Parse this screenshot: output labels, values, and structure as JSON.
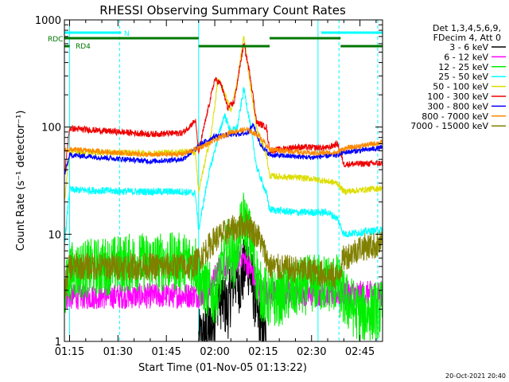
{
  "chart_data": {
    "type": "line",
    "title": "RHESSI Observing Summary Count Rates",
    "xlabel": "Start Time (01-Nov-05 01:13:22)",
    "ylabel": "Count Rate (s⁻¹ detector⁻¹)",
    "yscale": "log",
    "xlim_minutes": [
      73.4,
      172
    ],
    "ylim": [
      1,
      1000
    ],
    "x_ticks": [
      {
        "min": 75,
        "label": "01:15"
      },
      {
        "min": 90,
        "label": "01:30"
      },
      {
        "min": 105,
        "label": "01:45"
      },
      {
        "min": 120,
        "label": "02:00"
      },
      {
        "min": 135,
        "label": "02:15"
      },
      {
        "min": 150,
        "label": "02:30"
      },
      {
        "min": 165,
        "label": "02:45"
      }
    ],
    "y_ticks": [
      {
        "value": 1,
        "label": "1"
      },
      {
        "value": 10,
        "label": "10"
      },
      {
        "value": 100,
        "label": "100"
      },
      {
        "value": 1000,
        "label": "1000"
      }
    ],
    "grid": false,
    "legend": {
      "placement": "right",
      "header": [
        "Det 1,3,4,5,6,9,",
        "FDecim 4, Att 0"
      ],
      "entries": [
        {
          "label": "3 - 6 keV",
          "color": "#000000"
        },
        {
          "label": "6 - 12 keV",
          "color": "#ff00ff"
        },
        {
          "label": "12 - 25 keV",
          "color": "#00ee00"
        },
        {
          "label": "25 - 50 keV",
          "color": "#00ffff"
        },
        {
          "label": "50 - 100 keV",
          "color": "#dddd00"
        },
        {
          "label": "100 - 300 keV",
          "color": "#ee0000"
        },
        {
          "label": "300 - 800 keV",
          "color": "#0000ff"
        },
        {
          "label": "800 - 7000 keV",
          "color": "#ff8800"
        },
        {
          "label": "7000 - 15000 keV",
          "color": "#808000"
        }
      ]
    },
    "flags": [
      {
        "label": "N",
        "color": "#00ffff",
        "segments": [
          [
            73.4,
            91
          ],
          [
            153,
            172
          ]
        ]
      },
      {
        "label": "RDC",
        "color": "#007700",
        "segments": [
          [
            73.4,
            115
          ],
          [
            137,
            159
          ]
        ]
      },
      {
        "label": "RD4",
        "color": "#007700",
        "segments": [
          [
            73.4,
            75
          ],
          [
            115,
            137
          ],
          [
            159,
            172
          ]
        ]
      }
    ],
    "vlines_solid": [
      75,
      115,
      152
    ],
    "vlines_dashed": [
      90.5,
      158.5,
      170.5
    ],
    "series": [
      {
        "name": "3 - 6 keV",
        "color": "#000000",
        "noise": 0.3,
        "points": [
          [
            115,
            1
          ],
          [
            119,
            1.3
          ],
          [
            121,
            2.8
          ],
          [
            124,
            2
          ],
          [
            126,
            4
          ],
          [
            128,
            3.5
          ],
          [
            130,
            6
          ],
          [
            132,
            3
          ],
          [
            134,
            1.4
          ],
          [
            136,
            1
          ]
        ]
      },
      {
        "name": "6 - 12 keV",
        "color": "#ff00ff",
        "noise": 0.12,
        "points": [
          [
            73.4,
            2.6
          ],
          [
            115,
            2.7
          ],
          [
            118,
            2.8
          ],
          [
            122,
            5.5
          ],
          [
            125,
            4.6
          ],
          [
            128,
            6.5
          ],
          [
            131,
            4.8
          ],
          [
            134,
            3
          ],
          [
            137,
            2.8
          ],
          [
            172,
            2.8
          ]
        ]
      },
      {
        "name": "12 - 25 keV",
        "color": "#00ee00",
        "noise": 0.28,
        "points": [
          [
            73.4,
            2.5
          ],
          [
            75,
            4.5
          ],
          [
            95,
            5.5
          ],
          [
            105,
            5.5
          ],
          [
            114,
            5.5
          ],
          [
            116,
            3.5
          ],
          [
            120,
            2.6
          ],
          [
            124,
            7.5
          ],
          [
            126,
            5.8
          ],
          [
            129,
            14
          ],
          [
            131,
            9
          ],
          [
            134,
            3
          ],
          [
            137,
            2.4
          ],
          [
            150,
            3.5
          ],
          [
            158,
            3.5
          ],
          [
            160,
            2.5
          ],
          [
            165,
            1.8
          ],
          [
            172,
            2
          ]
        ]
      },
      {
        "name": "25 - 50 keV",
        "color": "#00ffff",
        "noise": 0.035,
        "points": [
          [
            73.4,
            8
          ],
          [
            75,
            26
          ],
          [
            95,
            25
          ],
          [
            110,
            25
          ],
          [
            114,
            24
          ],
          [
            115,
            11
          ],
          [
            118,
            35
          ],
          [
            121,
            80
          ],
          [
            123,
            130
          ],
          [
            125,
            90
          ],
          [
            127,
            100
          ],
          [
            129,
            230
          ],
          [
            131,
            105
          ],
          [
            133,
            42
          ],
          [
            136,
            24
          ],
          [
            137,
            17
          ],
          [
            145,
            16
          ],
          [
            155,
            16
          ],
          [
            158,
            14
          ],
          [
            160,
            10
          ],
          [
            172,
            11
          ]
        ]
      },
      {
        "name": "50 - 100 keV",
        "color": "#dddd00",
        "noise": 0.03,
        "points": [
          [
            73.4,
            20
          ],
          [
            75,
            59
          ],
          [
            100,
            57
          ],
          [
            110,
            59
          ],
          [
            114,
            58
          ],
          [
            115,
            25
          ],
          [
            119,
            90
          ],
          [
            121,
            280
          ],
          [
            123,
            210
          ],
          [
            125,
            140
          ],
          [
            127,
            270
          ],
          [
            129,
            700
          ],
          [
            131,
            250
          ],
          [
            133,
            95
          ],
          [
            136,
            56
          ],
          [
            137,
            35
          ],
          [
            150,
            33
          ],
          [
            158,
            30
          ],
          [
            160,
            25
          ],
          [
            172,
            27
          ]
        ]
      },
      {
        "name": "100 - 300 keV",
        "color": "#ee0000",
        "noise": 0.03,
        "points": [
          [
            73.4,
            35
          ],
          [
            75,
            97
          ],
          [
            100,
            86
          ],
          [
            110,
            88
          ],
          [
            114,
            115
          ],
          [
            115,
            60
          ],
          [
            117,
            110
          ],
          [
            120,
            280
          ],
          [
            122,
            250
          ],
          [
            124,
            150
          ],
          [
            126,
            170
          ],
          [
            128,
            400
          ],
          [
            129,
            600
          ],
          [
            131,
            300
          ],
          [
            133,
            110
          ],
          [
            136,
            100
          ],
          [
            137,
            60
          ],
          [
            145,
            65
          ],
          [
            155,
            64
          ],
          [
            158,
            70
          ],
          [
            160,
            45
          ],
          [
            172,
            46
          ]
        ]
      },
      {
        "name": "300 - 800 keV",
        "color": "#0000ff",
        "noise": 0.025,
        "points": [
          [
            73.4,
            35
          ],
          [
            75,
            55
          ],
          [
            100,
            48
          ],
          [
            110,
            50
          ],
          [
            114,
            62
          ],
          [
            116,
            70
          ],
          [
            120,
            82
          ],
          [
            125,
            85
          ],
          [
            130,
            88
          ],
          [
            132,
            105
          ],
          [
            134,
            70
          ],
          [
            137,
            55
          ],
          [
            150,
            52
          ],
          [
            158,
            55
          ],
          [
            160,
            58
          ],
          [
            172,
            64
          ]
        ]
      },
      {
        "name": "800 - 7000 keV",
        "color": "#ff8800",
        "noise": 0.025,
        "points": [
          [
            73.4,
            60
          ],
          [
            75,
            62
          ],
          [
            100,
            55
          ],
          [
            110,
            56
          ],
          [
            114,
            62
          ],
          [
            118,
            70
          ],
          [
            125,
            90
          ],
          [
            130,
            95
          ],
          [
            134,
            82
          ],
          [
            137,
            62
          ],
          [
            150,
            57
          ],
          [
            158,
            58
          ],
          [
            160,
            63
          ],
          [
            172,
            72
          ]
        ]
      },
      {
        "name": "7000 - 15000 keV",
        "color": "#808000",
        "noise": 0.13,
        "points": [
          [
            73.4,
            3
          ],
          [
            75,
            5
          ],
          [
            110,
            5
          ],
          [
            113,
            5
          ],
          [
            115,
            5.8
          ],
          [
            120,
            9
          ],
          [
            125,
            11
          ],
          [
            130,
            12.5
          ],
          [
            134,
            9
          ],
          [
            137,
            5
          ],
          [
            150,
            4.5
          ],
          [
            158,
            4
          ],
          [
            160,
            6
          ],
          [
            165,
            7.5
          ],
          [
            172,
            8
          ]
        ]
      }
    ]
  },
  "footer_timestamp": "20-Oct-2021 20:40"
}
